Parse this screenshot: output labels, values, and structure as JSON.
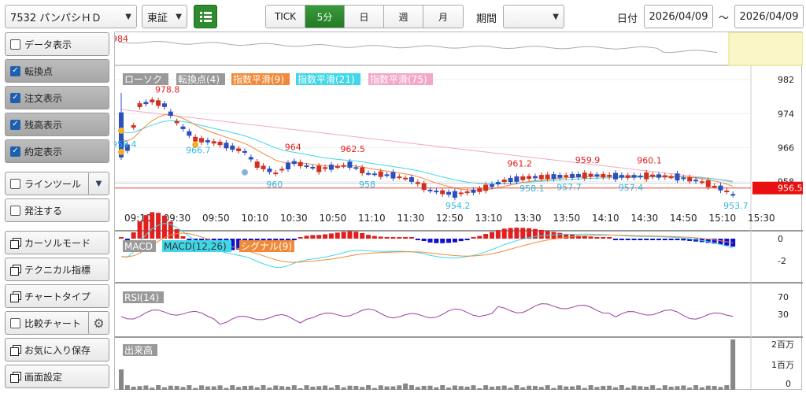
{
  "toolbar": {
    "stock": "7532 パンパシＨＤ",
    "market": "東証",
    "tabs": [
      "TICK",
      "5分",
      "日",
      "週",
      "月"
    ],
    "active_tab": "5分",
    "period_label": "期間",
    "date_label": "日付",
    "date_from": "2026/04/09",
    "tilde": "～",
    "date_to": "2026/04/09"
  },
  "left_panel": {
    "items": [
      {
        "label": "データ表示",
        "checked": false
      },
      {
        "label": "転換点",
        "checked": true
      },
      {
        "label": "注文表示",
        "checked": true
      },
      {
        "label": "残高表示",
        "checked": true
      },
      {
        "label": "約定表示",
        "checked": true
      },
      {
        "label": "ラインツール",
        "checked": false
      },
      {
        "label": "発注する",
        "checked": false
      },
      {
        "label": "カーソルモード"
      },
      {
        "label": "テクニカル指標"
      },
      {
        "label": "チャートタイプ"
      },
      {
        "label": "比較チャート",
        "checked": false
      },
      {
        "label": "お気に入り保存"
      },
      {
        "label": "画面設定"
      }
    ]
  },
  "legend": {
    "candle": "ローソク",
    "turning": "転換点(4)",
    "ema9": "指数平滑(9)",
    "ema21": "指数平滑(21)",
    "ema75": "指数平滑(75)",
    "macd": "MACD",
    "macd_line": "MACD(12,26)",
    "signal": "シグナル(9)",
    "rsi": "RSI(14)",
    "volume": "出来高"
  },
  "colors": {
    "up": "#d03020",
    "down": "#2a4fc0",
    "ema9": "#f08a3a",
    "ema21": "#40d8e8",
    "ema75": "#f4a8c8",
    "price_badge": "#e81010"
  },
  "chart_data": {
    "type": "candlestick",
    "x_ticks": [
      "09:10",
      "09:30",
      "09:50",
      "10:10",
      "10:30",
      "10:50",
      "11:10",
      "11:30",
      "12:50",
      "13:10",
      "13:30",
      "13:50",
      "14:10",
      "14:30",
      "14:50",
      "15:10",
      "15:30"
    ],
    "y_ticks": [
      982,
      974,
      966,
      958
    ],
    "ylim": [
      952,
      985
    ],
    "current_price": "956.5",
    "annotations": [
      {
        "text": "984",
        "type": "high",
        "i": 0
      },
      {
        "text": "978.8",
        "type": "high",
        "i": 7
      },
      {
        "text": "958.4",
        "type": "low",
        "i": 0
      },
      {
        "text": "966.7",
        "type": "low",
        "i": 12
      },
      {
        "text": "964",
        "type": "high",
        "i": 28
      },
      {
        "text": "960",
        "type": "low",
        "i": 25
      },
      {
        "text": "962.5",
        "type": "high",
        "i": 37
      },
      {
        "text": "958",
        "type": "low",
        "i": 40
      },
      {
        "text": "954.2",
        "type": "low",
        "i": 54
      },
      {
        "text": "961.2",
        "type": "high",
        "i": 64
      },
      {
        "text": "958.1",
        "type": "low",
        "i": 66
      },
      {
        "text": "959.9",
        "type": "high",
        "i": 75
      },
      {
        "text": "957.7",
        "type": "low",
        "i": 72
      },
      {
        "text": "960.1",
        "type": "high",
        "i": 85
      },
      {
        "text": "957.4",
        "type": "low",
        "i": 82
      },
      {
        "text": "953.7",
        "type": "low",
        "i": 99
      }
    ],
    "macd_ticks": [
      0,
      -2
    ],
    "rsi_ticks": [
      70,
      30
    ],
    "volume_ticks": [
      "2百万",
      "1百万",
      "0"
    ]
  }
}
